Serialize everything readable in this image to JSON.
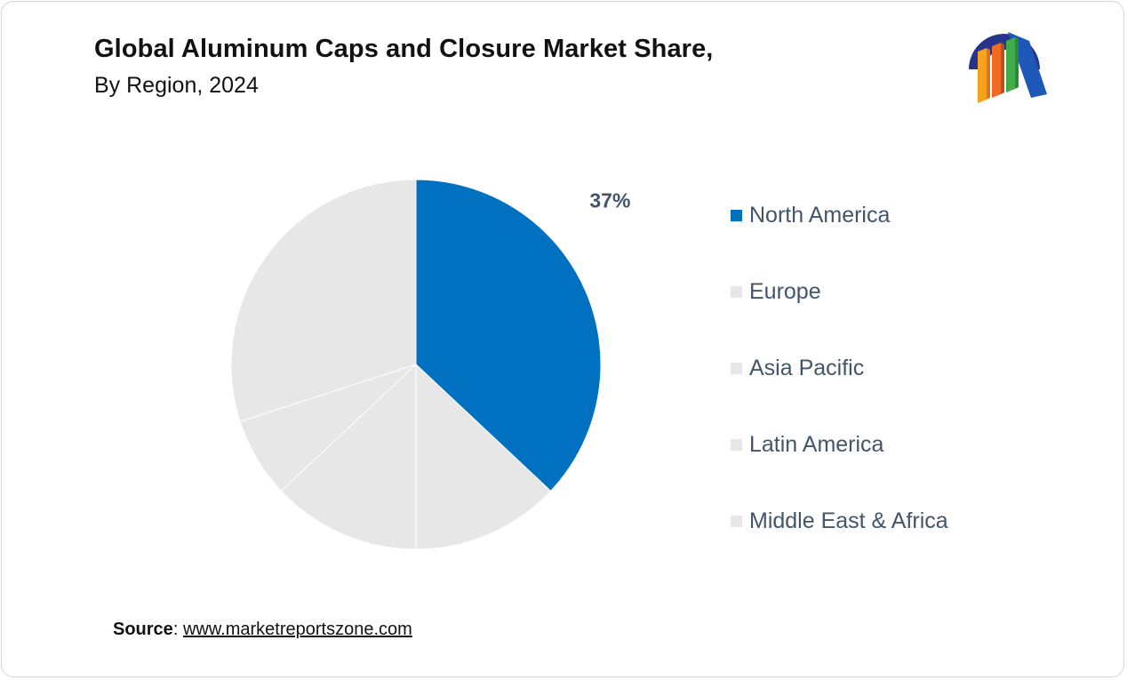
{
  "header": {
    "title": "Global Aluminum Caps and Closure Market Share,",
    "subtitle": "By Region, 2024"
  },
  "logo": {
    "icon": "market-reports-zone-logo"
  },
  "chart_data": {
    "type": "pie",
    "title": "Global Aluminum Caps and Closure Market Share,",
    "subtitle": "By Region, 2024",
    "categories": [
      "North America",
      "Europe",
      "Asia Pacific",
      "Latin America",
      "Middle East & Africa"
    ],
    "values": [
      37,
      13,
      13,
      7,
      30
    ],
    "labels": [
      "37%",
      "",
      "",
      "",
      ""
    ],
    "colors": [
      "#0070c0",
      "#e7e7e7",
      "#e7e7e7",
      "#e7e7e7",
      "#e7e7e7"
    ],
    "legend_position": "right"
  },
  "legend": {
    "items": [
      {
        "label": "North America",
        "color": "#0070c0"
      },
      {
        "label": "Europe",
        "color": "#e7e7e7"
      },
      {
        "label": "Asia Pacific",
        "color": "#e7e7e7"
      },
      {
        "label": "Latin America",
        "color": "#e7e7e7"
      },
      {
        "label": "Middle East & Africa",
        "color": "#e7e7e7"
      }
    ]
  },
  "footer": {
    "source_key": "Source",
    "source_sep": ": ",
    "source_link": "www.marketreportszone.com"
  }
}
